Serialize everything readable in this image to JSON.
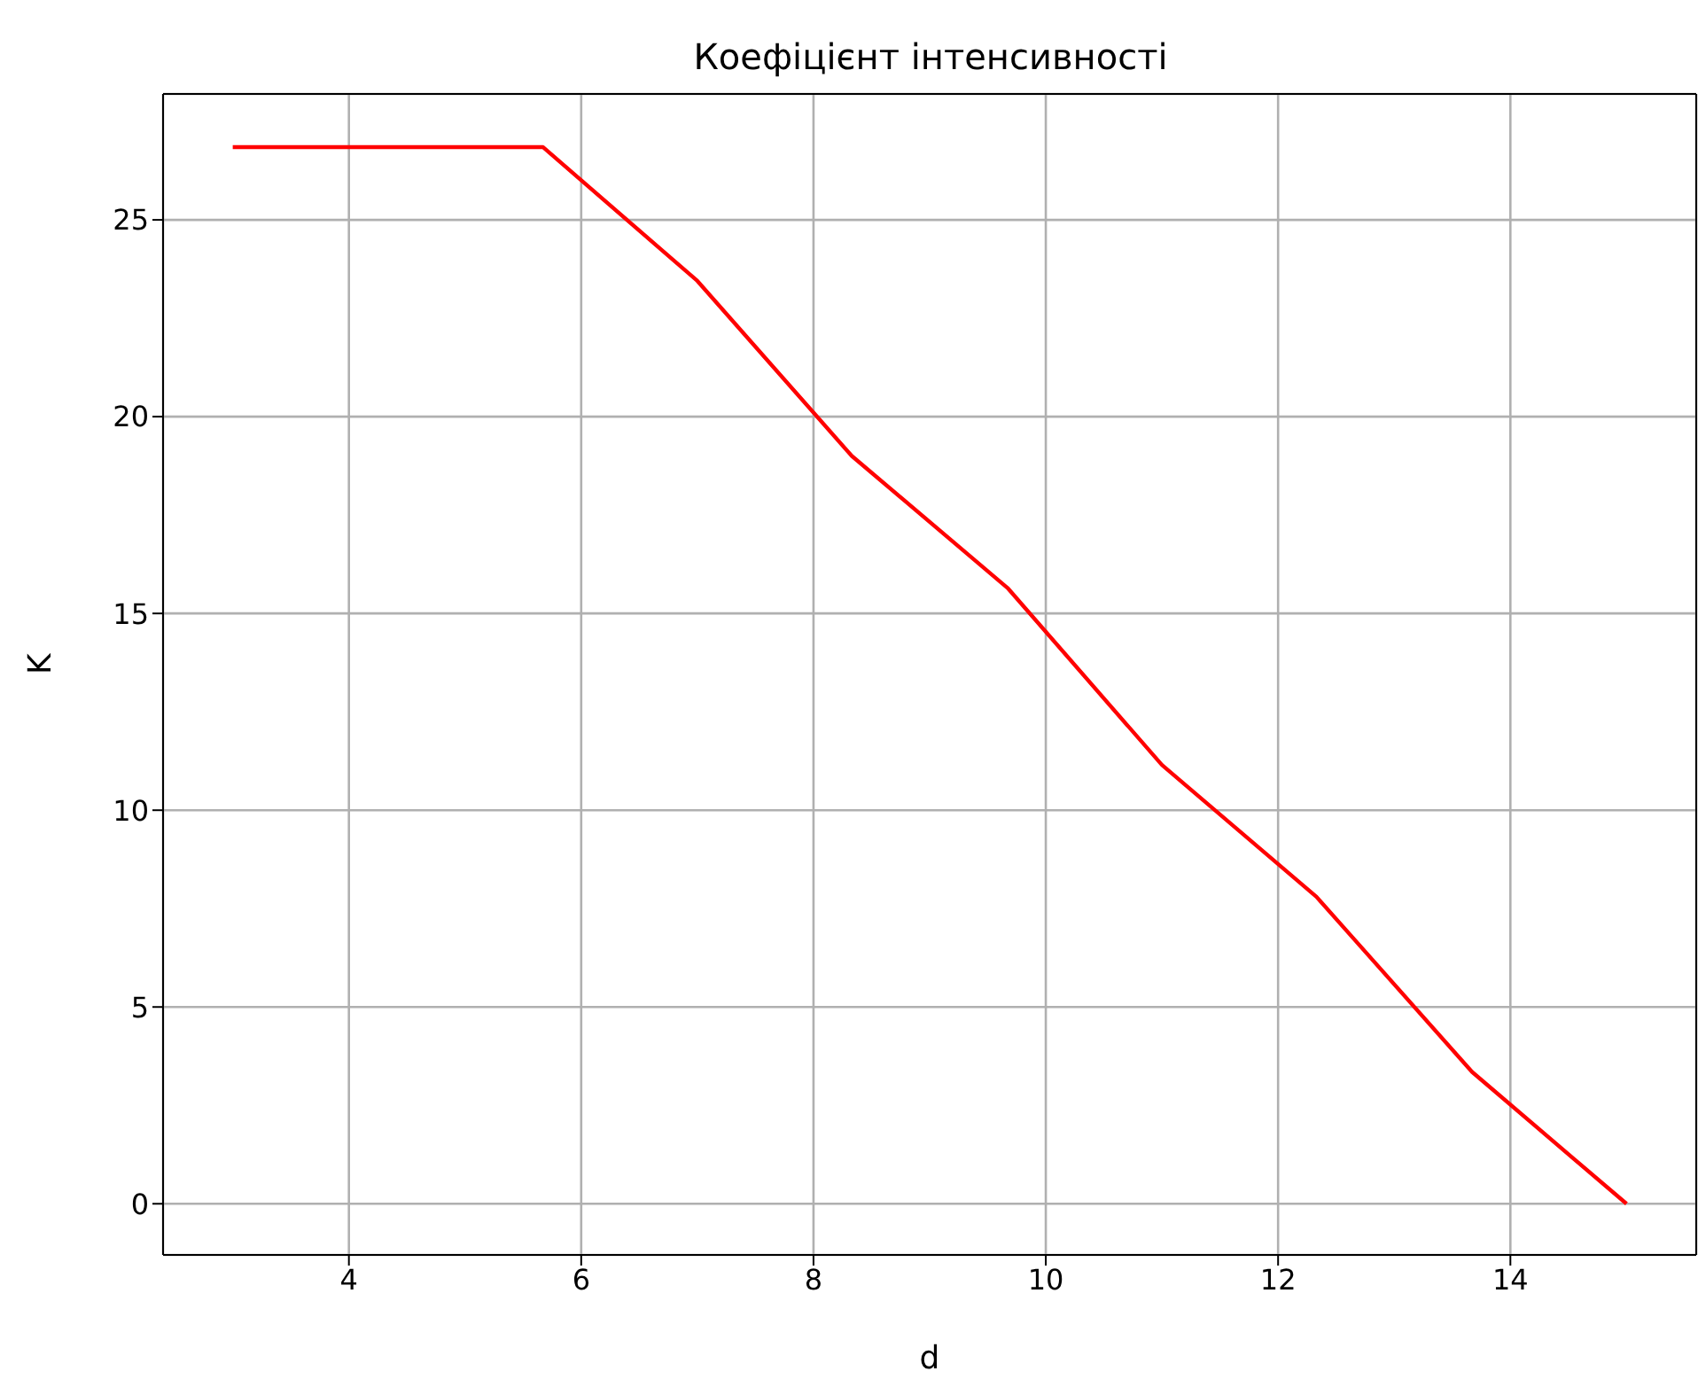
{
  "chart_data": {
    "type": "line",
    "title": "Коефіцієнт інтенсивності",
    "xlabel": "d",
    "ylabel": "K",
    "x": [
      3,
      4.33,
      5.67,
      7,
      8.33,
      9.67,
      11,
      12.33,
      13.67,
      15
    ],
    "series": [
      {
        "color": "#ff0000",
        "values": [
          26.85,
          26.85,
          26.85,
          23.45,
          19.0,
          15.65,
          11.15,
          7.8,
          3.35,
          0
        ]
      }
    ],
    "xlim": [
      2.4,
      15.6
    ],
    "xticks": [
      4,
      6,
      8,
      10,
      12,
      14
    ],
    "ylim": [
      -1.3,
      28.2
    ],
    "yticks": [
      0,
      5,
      10,
      15,
      20,
      25
    ],
    "grid": true,
    "marker": "none",
    "line_style": "solid"
  }
}
